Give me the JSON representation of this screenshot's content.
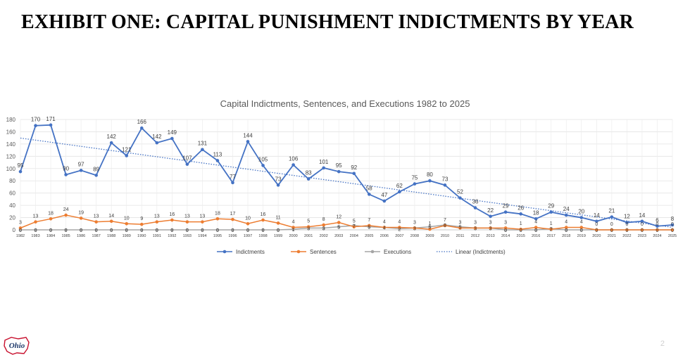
{
  "slide": {
    "title": "EXHIBIT ONE: CAPITAL PUNISHMENT INDICTMENTS BY YEAR",
    "page_number": "2",
    "logo_text": "Ohio"
  },
  "chart_data": {
    "type": "line",
    "title": "Capital Indictments, Sentences, and Executions 1982 to 2025",
    "xlabel": "",
    "ylabel": "",
    "ylim": [
      0,
      180
    ],
    "yticks": [
      0,
      20,
      40,
      60,
      80,
      100,
      120,
      140,
      160,
      180
    ],
    "grid": true,
    "legend_position": "bottom",
    "categories": [
      "1982",
      "1983",
      "1984",
      "1985",
      "1986",
      "1987",
      "1988",
      "1989",
      "1990",
      "1991",
      "1992",
      "1993",
      "1994",
      "1995",
      "1996",
      "1997",
      "1998",
      "1999",
      "2000",
      "2001",
      "2002",
      "2003",
      "2004",
      "2005",
      "2006",
      "2007",
      "2008",
      "2009",
      "2010",
      "2011",
      "2012",
      "2013",
      "2014",
      "2015",
      "2016",
      "2017",
      "2018",
      "2019",
      "2020",
      "2021",
      "2022",
      "2023",
      "2024",
      "2025"
    ],
    "series": [
      {
        "name": "Indictments",
        "color": "#4472C4",
        "values": [
          95,
          170,
          171,
          90,
          97,
          89,
          142,
          121,
          166,
          142,
          149,
          107,
          131,
          113,
          77,
          144,
          105,
          73,
          106,
          83,
          101,
          95,
          92,
          58,
          47,
          62,
          75,
          80,
          73,
          52,
          36,
          22,
          29,
          26,
          18,
          29,
          24,
          20,
          14,
          21,
          12,
          14,
          6,
          8
        ]
      },
      {
        "name": "Sentences",
        "color": "#ED7D31",
        "values": [
          3,
          13,
          18,
          24,
          19,
          13,
          14,
          10,
          9,
          13,
          16,
          13,
          13,
          18,
          17,
          10,
          16,
          11,
          4,
          5,
          8,
          12,
          5,
          7,
          4,
          4,
          3,
          1,
          7,
          3,
          3,
          3,
          3,
          1,
          4,
          1,
          4,
          4,
          0,
          0,
          0,
          0,
          0,
          0
        ]
      },
      {
        "name": "Executions",
        "color": "#A5A5A5",
        "values": [
          0,
          0,
          0,
          0,
          0,
          0,
          0,
          0,
          0,
          0,
          0,
          0,
          0,
          0,
          0,
          0,
          0,
          0,
          1,
          3,
          3,
          5,
          7,
          5,
          4,
          2,
          3,
          5,
          8,
          5,
          3,
          3,
          0,
          0,
          0,
          2,
          0,
          0,
          0,
          0,
          0,
          0,
          0,
          0
        ]
      }
    ],
    "trendline": {
      "name": "Linear (Indictments)",
      "of_series": "Indictments",
      "color": "#4472C4",
      "style": "dotted"
    }
  }
}
